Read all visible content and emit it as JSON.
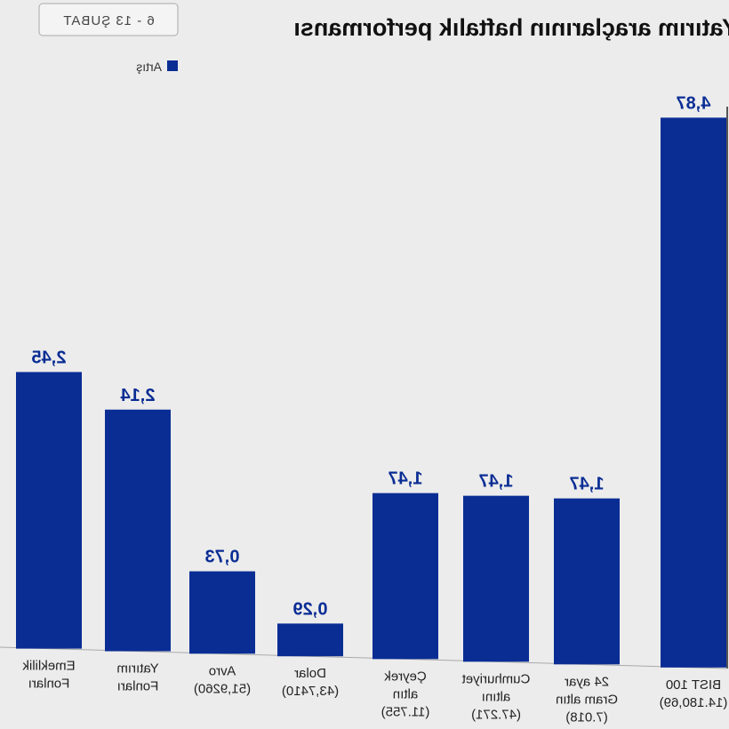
{
  "chart_data": {
    "type": "bar",
    "title": "Yatırım araçlarının haftalık performansı",
    "date_range": "6 - 13 ŞUBAT",
    "legend": [
      "Artış"
    ],
    "legend_placement": "top-right",
    "categories": [
      [
        "BIST 100",
        "(14.180,69)"
      ],
      [
        "24 ayar",
        "Gram altın",
        "(7.018)"
      ],
      [
        "Cumhuriyet",
        "altını",
        "(47.271)"
      ],
      [
        "Çeyrek",
        "altın",
        "(11.755)"
      ],
      [
        "Dolar",
        "(43,7410)"
      ],
      [
        "Avro",
        "(51,9260)"
      ],
      [
        "Yatırım",
        "Fonları"
      ],
      [
        "Emeklilik",
        "Fonları"
      ]
    ],
    "values": [
      4.87,
      1.47,
      1.47,
      1.47,
      0.29,
      0.73,
      2.14,
      2.45
    ],
    "value_labels": [
      "4,87",
      "1,47",
      "1,47",
      "1,47",
      "0,29",
      "0,73",
      "2,14",
      "2,45"
    ],
    "bar_color": "#0a2d94",
    "ylim": [
      0,
      5
    ],
    "grid": false,
    "mirrored": true
  }
}
